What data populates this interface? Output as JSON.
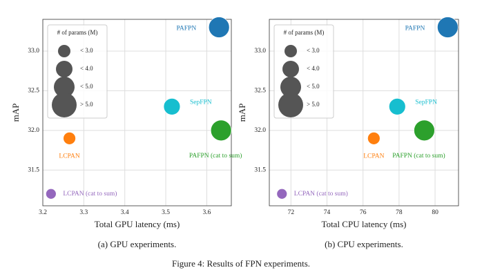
{
  "caption": "Figure 4: Results of FPN experiments.",
  "chart_data": [
    {
      "type": "scatter",
      "caption": "(a) GPU experiments.",
      "xlabel": "Total GPU latency (ms)",
      "ylabel": "mAP",
      "xlim": [
        3.2,
        3.66
      ],
      "xticks": [
        3.2,
        3.3,
        3.4,
        3.5,
        3.6
      ],
      "ylim": [
        31.05,
        33.4
      ],
      "yticks": [
        {
          "value": 31.5,
          "label": "31.5"
        },
        {
          "value": 32,
          "label": "32.0"
        },
        {
          "value": 32.5,
          "label": "32.5"
        },
        {
          "value": 33,
          "label": "33.0"
        }
      ],
      "grid": true,
      "legend": {
        "title": "# of params (M)",
        "position": "upper left",
        "color": "#555555",
        "entries": [
          {
            "value": 3,
            "label": "< 3.0"
          },
          {
            "value": 4,
            "label": "< 4.0"
          },
          {
            "value": 5,
            "label": "< 5.0"
          },
          {
            "value": 6,
            "label": "> 5.0"
          }
        ]
      },
      "series": [
        {
          "name": "PAFPN",
          "color": "#1f77b4",
          "x": [
            3.63
          ],
          "values": [
            33.3
          ],
          "sizes": [
            5
          ]
        },
        {
          "name": "SepFPN",
          "color": "#17becf",
          "x": [
            3.515
          ],
          "values": [
            32.3
          ],
          "sizes": [
            4
          ]
        },
        {
          "name": "PAFPN (cat to sum)",
          "color": "#2ca02c",
          "x": [
            3.635
          ],
          "values": [
            32.0
          ],
          "sizes": [
            5
          ]
        },
        {
          "name": "LCPAN",
          "color": "#ff7f0e",
          "x": [
            3.265
          ],
          "values": [
            31.9
          ],
          "sizes": [
            3
          ]
        },
        {
          "name": "LCPAN (cat to sum)",
          "color": "#9467bd",
          "x": [
            3.22
          ],
          "values": [
            31.2
          ],
          "sizes": [
            2.5
          ]
        }
      ]
    },
    {
      "type": "scatter",
      "caption": "(b) CPU experiments.",
      "xlabel": "Total CPU latency (ms)",
      "ylabel": "mAP",
      "xlim": [
        70.8,
        81.3
      ],
      "xticks": [
        72,
        74,
        76,
        78,
        80
      ],
      "ylim": [
        31.05,
        33.4
      ],
      "yticks": [
        {
          "value": 31.5,
          "label": "31.5"
        },
        {
          "value": 32,
          "label": "32.0"
        },
        {
          "value": 32.5,
          "label": "32.5"
        },
        {
          "value": 33,
          "label": "33.0"
        }
      ],
      "grid": true,
      "legend": {
        "title": "# of params (M)",
        "position": "upper left",
        "color": "#555555",
        "entries": [
          {
            "value": 3,
            "label": "< 3.0"
          },
          {
            "value": 4,
            "label": "< 4.0"
          },
          {
            "value": 5,
            "label": "< 5.0"
          },
          {
            "value": 6,
            "label": "> 5.0"
          }
        ]
      },
      "series": [
        {
          "name": "PAFPN",
          "color": "#1f77b4",
          "x": [
            80.7
          ],
          "values": [
            33.3
          ],
          "sizes": [
            5
          ]
        },
        {
          "name": "SepFPN",
          "color": "#17becf",
          "x": [
            77.9
          ],
          "values": [
            32.3
          ],
          "sizes": [
            4
          ]
        },
        {
          "name": "PAFPN (cat to sum)",
          "color": "#2ca02c",
          "x": [
            79.4
          ],
          "values": [
            32.0
          ],
          "sizes": [
            5
          ]
        },
        {
          "name": "LCPAN",
          "color": "#ff7f0e",
          "x": [
            76.6
          ],
          "values": [
            31.9
          ],
          "sizes": [
            3
          ]
        },
        {
          "name": "LCPAN (cat to sum)",
          "color": "#9467bd",
          "x": [
            71.5
          ],
          "values": [
            31.2
          ],
          "sizes": [
            2.5
          ]
        }
      ]
    }
  ]
}
